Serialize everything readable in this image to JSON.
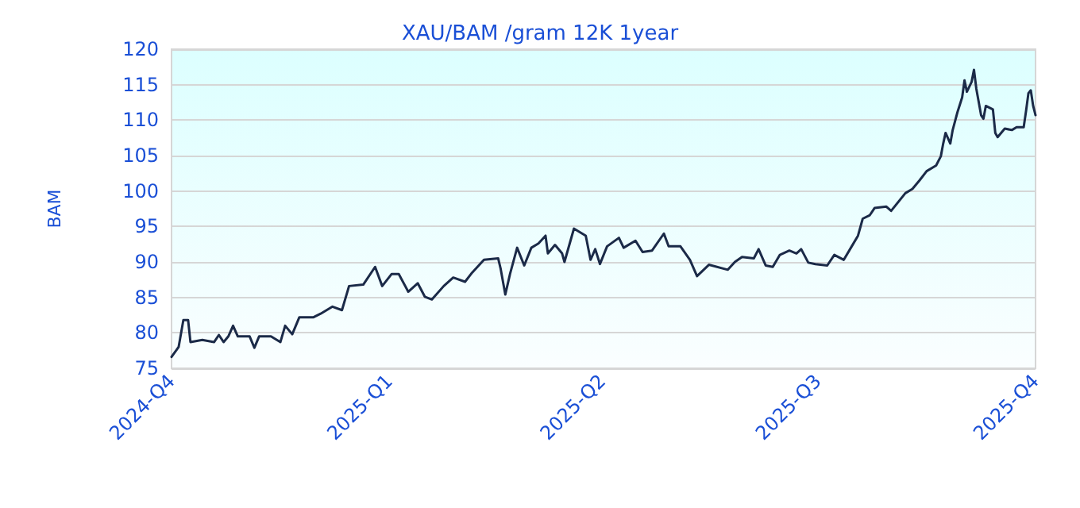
{
  "chart_data": {
    "type": "line",
    "title": "XAU/BAM /gram 12K 1year",
    "ylabel": "BAM",
    "xlim": [
      "2024-10-01",
      "2025-10-01"
    ],
    "xticks": [
      {
        "value": "2024-10-01",
        "label": "2024-Q4"
      },
      {
        "value": "2025-01-01",
        "label": "2025-Q1"
      },
      {
        "value": "2025-04-01",
        "label": "2025-Q2"
      },
      {
        "value": "2025-07-01",
        "label": "2025-Q3"
      },
      {
        "value": "2025-10-01",
        "label": "2025-Q4"
      }
    ],
    "ylim": [
      75,
      120
    ],
    "yticks": [
      75,
      80,
      85,
      90,
      95,
      100,
      105,
      110,
      115,
      120
    ],
    "grid": "y",
    "marker": "none",
    "line_style": "solid",
    "x": [
      "2024-10-01",
      "2024-10-04",
      "2024-10-06",
      "2024-10-08",
      "2024-10-09",
      "2024-10-14",
      "2024-10-19",
      "2024-10-21",
      "2024-10-23",
      "2024-10-25",
      "2024-10-27",
      "2024-10-29",
      "2024-11-03",
      "2024-11-05",
      "2024-11-07",
      "2024-11-12",
      "2024-11-16",
      "2024-11-18",
      "2024-11-21",
      "2024-11-24",
      "2024-11-30",
      "2024-12-03",
      "2024-12-08",
      "2024-12-12",
      "2024-12-15",
      "2024-12-21",
      "2024-12-26",
      "2024-12-29",
      "2025-01-02",
      "2025-01-05",
      "2025-01-09",
      "2025-01-13",
      "2025-01-16",
      "2025-01-19",
      "2025-01-24",
      "2025-01-28",
      "2025-02-02",
      "2025-02-05",
      "2025-02-10",
      "2025-02-16",
      "2025-02-17",
      "2025-02-19",
      "2025-02-21",
      "2025-02-24",
      "2025-02-27",
      "2025-03-02",
      "2025-03-05",
      "2025-03-08",
      "2025-03-09",
      "2025-03-12",
      "2025-03-15",
      "2025-03-16",
      "2025-03-20",
      "2025-03-25",
      "2025-03-27",
      "2025-03-29",
      "2025-03-31",
      "2025-04-03",
      "2025-04-08",
      "2025-04-10",
      "2025-04-15",
      "2025-04-18",
      "2025-04-22",
      "2025-04-27",
      "2025-04-29",
      "2025-05-04",
      "2025-05-08",
      "2025-05-11",
      "2025-05-16",
      "2025-05-24",
      "2025-05-27",
      "2025-05-30",
      "2025-06-04",
      "2025-06-06",
      "2025-06-09",
      "2025-06-12",
      "2025-06-15",
      "2025-06-19",
      "2025-06-22",
      "2025-06-24",
      "2025-06-27",
      "2025-06-30",
      "2025-07-05",
      "2025-07-08",
      "2025-07-12",
      "2025-07-15",
      "2025-07-18",
      "2025-07-20",
      "2025-07-23",
      "2025-07-25",
      "2025-07-30",
      "2025-08-01",
      "2025-08-07",
      "2025-08-10",
      "2025-08-13",
      "2025-08-16",
      "2025-08-20",
      "2025-08-22",
      "2025-08-23",
      "2025-08-24",
      "2025-08-26",
      "2025-08-27",
      "2025-08-29",
      "2025-08-31",
      "2025-09-01",
      "2025-09-02",
      "2025-09-04",
      "2025-09-05",
      "2025-09-06",
      "2025-09-08",
      "2025-09-09",
      "2025-09-10",
      "2025-09-13",
      "2025-09-14",
      "2025-09-15",
      "2025-09-18",
      "2025-09-21",
      "2025-09-23",
      "2025-09-26",
      "2025-09-27",
      "2025-09-28",
      "2025-09-29",
      "2025-09-30",
      "2025-10-01"
    ],
    "series": [
      {
        "color": "#1b2a48",
        "values": [
          76.6,
          78,
          81.8,
          81.8,
          78.7,
          79,
          78.7,
          79.7,
          78.7,
          79.5,
          81,
          79.5,
          79.5,
          77.9,
          79.5,
          79.5,
          78.7,
          81,
          79.8,
          82.2,
          82.2,
          82.7,
          83.7,
          83.2,
          86.6,
          86.8,
          89.3,
          86.6,
          88.3,
          88.3,
          85.8,
          87,
          85.1,
          84.7,
          86.6,
          87.8,
          87.2,
          88.5,
          90.3,
          90.5,
          89.1,
          85.4,
          88.3,
          92,
          89.5,
          92,
          92.6,
          93.7,
          91.2,
          92.4,
          91.2,
          90,
          94.7,
          93.7,
          90.3,
          91.8,
          89.7,
          92.2,
          93.4,
          92,
          93,
          91.4,
          91.6,
          94,
          92.2,
          92.2,
          90.3,
          88,
          89.6,
          88.9,
          90,
          90.7,
          90.5,
          91.8,
          89.5,
          89.3,
          91,
          91.6,
          91.2,
          91.8,
          89.9,
          89.7,
          89.5,
          91,
          90.3,
          92,
          93.7,
          96.1,
          96.6,
          97.6,
          97.8,
          97.2,
          99.7,
          100.3,
          101.5,
          102.8,
          103.6,
          104.9,
          106.7,
          108.2,
          106.7,
          108.6,
          111.1,
          113.2,
          115.6,
          114,
          115.4,
          117.1,
          114.4,
          110.7,
          110.2,
          112,
          111.5,
          108.2,
          107.6,
          108.8,
          108.6,
          109,
          109,
          111.3,
          113.8,
          114.2,
          112,
          110.7
        ]
      }
    ]
  }
}
